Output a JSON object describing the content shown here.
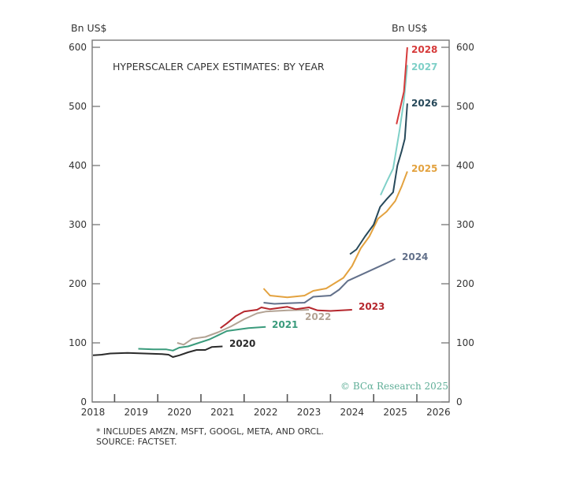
{
  "chart_data": {
    "type": "line",
    "title": "HYPERSCALER CAPEX ESTIMATES: BY YEAR",
    "ylabel_left": "Bn US$",
    "ylabel_right": "Bn US$",
    "xlim": [
      2018,
      2026.25
    ],
    "ylim": [
      0,
      600
    ],
    "x_ticks": [
      "2018",
      "2019",
      "2020",
      "2021",
      "2022",
      "2023",
      "2024",
      "2025",
      "2026"
    ],
    "y_ticks": [
      "0",
      "100",
      "200",
      "300",
      "400",
      "500",
      "600"
    ],
    "grid": false,
    "footnote": "* INCLUDES AMZN, MSFT, GOOGL, META, AND ORCL.",
    "source": "SOURCE: FACTSET.",
    "watermark": "© BCα Research 2025",
    "series": [
      {
        "name": "2020",
        "color": "#2b2b2b",
        "x": [
          2018.0,
          2018.2,
          2018.4,
          2018.8,
          2019.2,
          2019.6,
          2019.75,
          2019.85,
          2020.0,
          2020.2,
          2020.4,
          2020.6,
          2020.75,
          2021.0
        ],
        "y": [
          79,
          80,
          82,
          83,
          82,
          81,
          80,
          76,
          79,
          84,
          88,
          88,
          93,
          94
        ]
      },
      {
        "name": "2021",
        "color": "#3a9b7c",
        "x": [
          2019.05,
          2019.4,
          2019.7,
          2019.85,
          2020.0,
          2020.2,
          2020.45,
          2020.7,
          2020.9,
          2021.1,
          2021.3,
          2021.6,
          2022.0
        ],
        "y": [
          90,
          89,
          89,
          87,
          92,
          94,
          100,
          106,
          113,
          120,
          122,
          125,
          127
        ]
      },
      {
        "name": "2022",
        "color": "#b3a394",
        "x": [
          2019.95,
          2020.1,
          2020.3,
          2020.6,
          2020.9,
          2021.2,
          2021.5,
          2021.8,
          2022.0,
          2022.5,
          2023.0
        ],
        "y": [
          100,
          97,
          107,
          110,
          118,
          128,
          140,
          150,
          153,
          155,
          156
        ]
      },
      {
        "name": "2023",
        "color": "#b5272d",
        "x": [
          2020.95,
          2021.1,
          2021.3,
          2021.5,
          2021.8,
          2021.9,
          2022.1,
          2022.5,
          2022.7,
          2023.0,
          2023.2,
          2023.5,
          2024.0
        ],
        "y": [
          125,
          133,
          145,
          153,
          156,
          160,
          157,
          161,
          157,
          160,
          155,
          154,
          156
        ]
      },
      {
        "name": "2024",
        "color": "#62708a",
        "x": [
          2021.95,
          2022.2,
          2022.5,
          2022.9,
          2023.1,
          2023.5,
          2023.7,
          2023.9,
          2024.2,
          2024.5,
          2024.8,
          2025.0
        ],
        "y": [
          168,
          166,
          167,
          168,
          178,
          180,
          190,
          205,
          215,
          225,
          235,
          242
        ]
      },
      {
        "name": "2025",
        "color": "#e3a23f",
        "x": [
          2021.95,
          2022.1,
          2022.5,
          2022.9,
          2023.1,
          2023.4,
          2023.8,
          2024.0,
          2024.2,
          2024.4,
          2024.6,
          2024.8,
          2025.0,
          2025.15,
          2025.28
        ],
        "y": [
          192,
          180,
          177,
          180,
          188,
          192,
          210,
          230,
          260,
          280,
          310,
          322,
          340,
          365,
          390
        ]
      },
      {
        "name": "2026",
        "color": "#27495a",
        "x": [
          2023.95,
          2024.1,
          2024.3,
          2024.5,
          2024.65,
          2024.8,
          2024.95,
          2025.05,
          2025.15,
          2025.22,
          2025.28
        ],
        "y": [
          250,
          258,
          280,
          300,
          330,
          343,
          355,
          400,
          425,
          445,
          505
        ]
      },
      {
        "name": "2027",
        "color": "#7fd0c8",
        "x": [
          2024.66,
          2024.8,
          2024.95,
          2025.1,
          2025.2,
          2025.28
        ],
        "y": [
          350,
          372,
          395,
          460,
          510,
          570
        ]
      },
      {
        "name": "2028",
        "color": "#d63a3a",
        "x": [
          2025.03,
          2025.2,
          2025.28
        ],
        "y": [
          470,
          525,
          600
        ]
      }
    ]
  }
}
